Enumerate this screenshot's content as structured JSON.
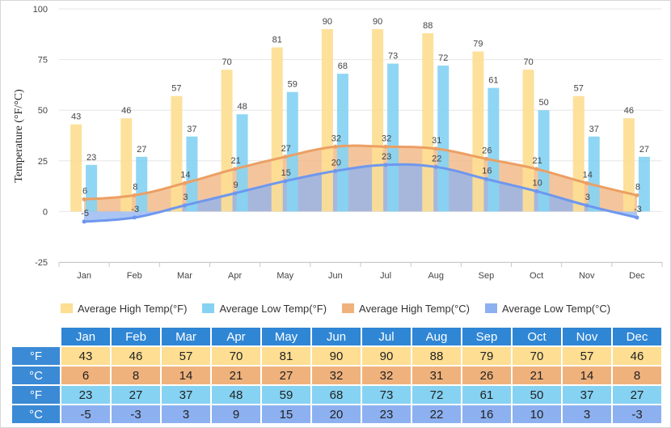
{
  "chart_data": {
    "type": "bar",
    "ylabel": "Temperature (°F/°C)",
    "ylim": [
      -25,
      100
    ],
    "yticks": [
      -25,
      0,
      25,
      50,
      75,
      100
    ],
    "grid": true,
    "legend_position": "bottom",
    "categories": [
      "Jan",
      "Feb",
      "Mar",
      "Apr",
      "May",
      "Jun",
      "Jul",
      "Aug",
      "Sep",
      "Oct",
      "Nov",
      "Dec"
    ],
    "series": [
      {
        "name": "Average High Temp(°F)",
        "type": "bar",
        "color": "#fdde92",
        "values": [
          43,
          46,
          57,
          70,
          81,
          90,
          90,
          88,
          79,
          70,
          57,
          46
        ]
      },
      {
        "name": "Average Low Temp(°F)",
        "type": "bar",
        "color": "#86d2f3",
        "values": [
          23,
          27,
          37,
          48,
          59,
          68,
          73,
          72,
          61,
          50,
          37,
          27
        ]
      },
      {
        "name": "Average High Temp(°C)",
        "type": "area",
        "color": "#f0b27c",
        "line": "#ec9f63",
        "values": [
          6,
          8,
          14,
          21,
          27,
          32,
          32,
          31,
          26,
          21,
          14,
          8
        ]
      },
      {
        "name": "Average Low Temp(°C)",
        "type": "area",
        "color": "#8db1f0",
        "line": "#6e97ee",
        "values": [
          -5,
          -3,
          3,
          9,
          15,
          20,
          23,
          22,
          16,
          10,
          3,
          -3
        ]
      }
    ]
  },
  "table": {
    "months": [
      "Jan",
      "Feb",
      "Mar",
      "Apr",
      "May",
      "Jun",
      "Jul",
      "Aug",
      "Sep",
      "Oct",
      "Nov",
      "Dec"
    ],
    "rows": [
      {
        "label": "°F",
        "values": [
          "43",
          "46",
          "57",
          "70",
          "81",
          "90",
          "90",
          "88",
          "79",
          "70",
          "57",
          "46"
        ]
      },
      {
        "label": "°C",
        "values": [
          "6",
          "8",
          "14",
          "21",
          "27",
          "32",
          "32",
          "31",
          "26",
          "21",
          "14",
          "8"
        ]
      },
      {
        "label": "°F",
        "values": [
          "23",
          "27",
          "37",
          "48",
          "59",
          "68",
          "73",
          "72",
          "61",
          "50",
          "37",
          "27"
        ]
      },
      {
        "label": "°C",
        "values": [
          "-5",
          "-3",
          "3",
          "9",
          "15",
          "20",
          "23",
          "22",
          "16",
          "10",
          "3",
          "-3"
        ]
      }
    ]
  }
}
